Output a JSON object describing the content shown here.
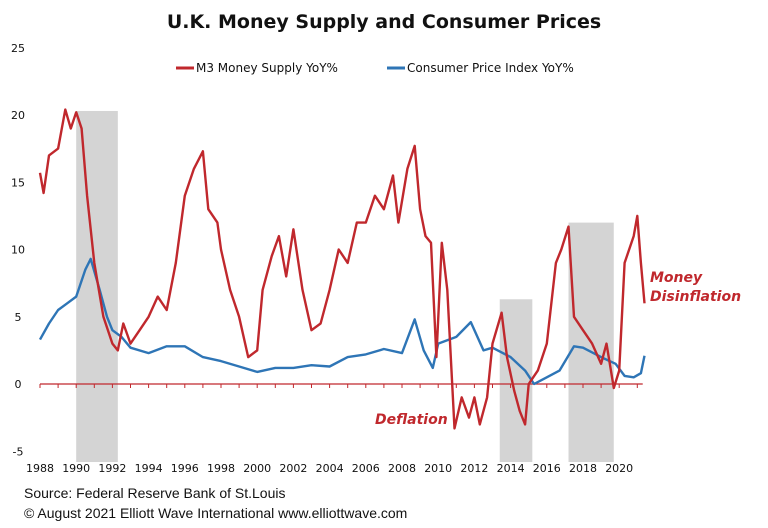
{
  "chart_data": {
    "type": "line",
    "title": "U.K. Money Supply and Consumer Prices",
    "xlabel": "",
    "ylabel": "",
    "xlim": [
      1988,
      2021.5
    ],
    "ylim": [
      -5,
      25
    ],
    "x_ticks": [
      "1988",
      "1990",
      "1992",
      "1994",
      "1996",
      "1998",
      "2000",
      "2002",
      "2004",
      "2006",
      "2008",
      "2010",
      "2012",
      "2014",
      "2016",
      "2018",
      "2020"
    ],
    "y_ticks": [
      "25",
      "20",
      "15",
      "10",
      "5",
      "0",
      "-5"
    ],
    "grid": false,
    "legend_position": "top-center",
    "colors": {
      "m3": "#c0282d",
      "cpi": "#2e75b6",
      "shade": "#d4d4d4"
    },
    "shaded_periods": [
      {
        "start": 1990.0,
        "end": 1992.3,
        "top": 20.3
      },
      {
        "start": 2013.4,
        "end": 2015.2,
        "top": 6.3
      },
      {
        "start": 2017.2,
        "end": 2019.7,
        "top": 12
      }
    ],
    "series": [
      {
        "name": "M3 Money Supply YoY%",
        "color": "#c0282d",
        "x": [
          1988,
          1988.2,
          1988.5,
          1989,
          1989.4,
          1989.7,
          1990,
          1990.3,
          1990.6,
          1991,
          1991.5,
          1992,
          1992.3,
          1992.6,
          1993,
          1993.5,
          1994,
          1994.5,
          1995,
          1995.5,
          1996,
          1996.5,
          1997,
          1997.3,
          1997.8,
          1998,
          1998.5,
          1999,
          1999.5,
          2000,
          2000.3,
          2000.8,
          2001.2,
          2001.6,
          2002,
          2002.5,
          2003,
          2003.5,
          2004,
          2004.5,
          2005,
          2005.5,
          2006,
          2006.5,
          2007,
          2007.5,
          2007.8,
          2008.3,
          2008.7,
          2009,
          2009.3,
          2009.6,
          2009.9,
          2010.2,
          2010.5,
          2010.9,
          2011.3,
          2011.7,
          2012,
          2012.3,
          2012.7,
          2013,
          2013.5,
          2013.8,
          2014.2,
          2014.5,
          2014.8,
          2015,
          2015.5,
          2016,
          2016.5,
          2016.8,
          2017.2,
          2017.5,
          2018,
          2018.5,
          2019,
          2019.3,
          2019.7,
          2020,
          2020.3,
          2020.8,
          2021,
          2021.2,
          2021.4
        ],
        "y": [
          15.7,
          14.2,
          17,
          17.5,
          20.4,
          19,
          20.2,
          19,
          14,
          9,
          5,
          3,
          2.5,
          4.5,
          3,
          4,
          5,
          6.5,
          5.5,
          9,
          14,
          16,
          17.3,
          13,
          12,
          10,
          7,
          5,
          2,
          2.5,
          7,
          9.5,
          11,
          8,
          11.5,
          7,
          4,
          4.5,
          7,
          10,
          9,
          12,
          12,
          14,
          13,
          15.5,
          12,
          16,
          17.7,
          13,
          11,
          10.5,
          2,
          10.5,
          7,
          -3.3,
          -1,
          -2.5,
          -1,
          -3,
          -1,
          3,
          5.3,
          2,
          -0.5,
          -2,
          -3,
          0,
          1,
          3,
          9,
          10,
          11.7,
          5,
          4,
          3,
          1.5,
          3,
          -0.3,
          1,
          9,
          11,
          12.5,
          9,
          6
        ]
      },
      {
        "name": "Consumer Price Index YoY%",
        "color": "#2e75b6",
        "x": [
          1988,
          1988.5,
          1989,
          1989.5,
          1990,
          1990.5,
          1990.8,
          1991.3,
          1991.7,
          1992,
          1992.5,
          1993,
          1994,
          1995,
          1996,
          1997,
          1998,
          1999,
          2000,
          2001,
          2002,
          2003,
          2004,
          2005,
          2006,
          2007,
          2008,
          2008.7,
          2009.2,
          2009.7,
          2010,
          2011,
          2011.8,
          2012.5,
          2013,
          2014,
          2014.8,
          2015.3,
          2016,
          2016.7,
          2017.5,
          2018,
          2019,
          2019.8,
          2020.3,
          2020.8,
          2021.2,
          2021.4
        ],
        "y": [
          3.3,
          4.5,
          5.5,
          6,
          6.5,
          8.5,
          9.3,
          7,
          5,
          4,
          3.5,
          2.7,
          2.3,
          2.8,
          2.8,
          2,
          1.7,
          1.3,
          0.9,
          1.2,
          1.2,
          1.4,
          1.3,
          2,
          2.2,
          2.6,
          2.3,
          4.8,
          2.5,
          1.2,
          3,
          3.5,
          4.6,
          2.5,
          2.7,
          2,
          1,
          0,
          0.5,
          1,
          2.8,
          2.7,
          2,
          1.5,
          0.6,
          0.5,
          0.8,
          2.1
        ]
      }
    ],
    "annotations": [
      {
        "text": "Money",
        "color": "#c0282d"
      },
      {
        "text": "Disinflation",
        "color": "#c0282d"
      },
      {
        "text": "Deflation",
        "color": "#c0282d"
      }
    ]
  },
  "footer": {
    "source": "Source: Federal Reserve Bank of St.Louis",
    "copyright": "© August  2021   Elliott  Wave International    www.elliottwave.com"
  }
}
